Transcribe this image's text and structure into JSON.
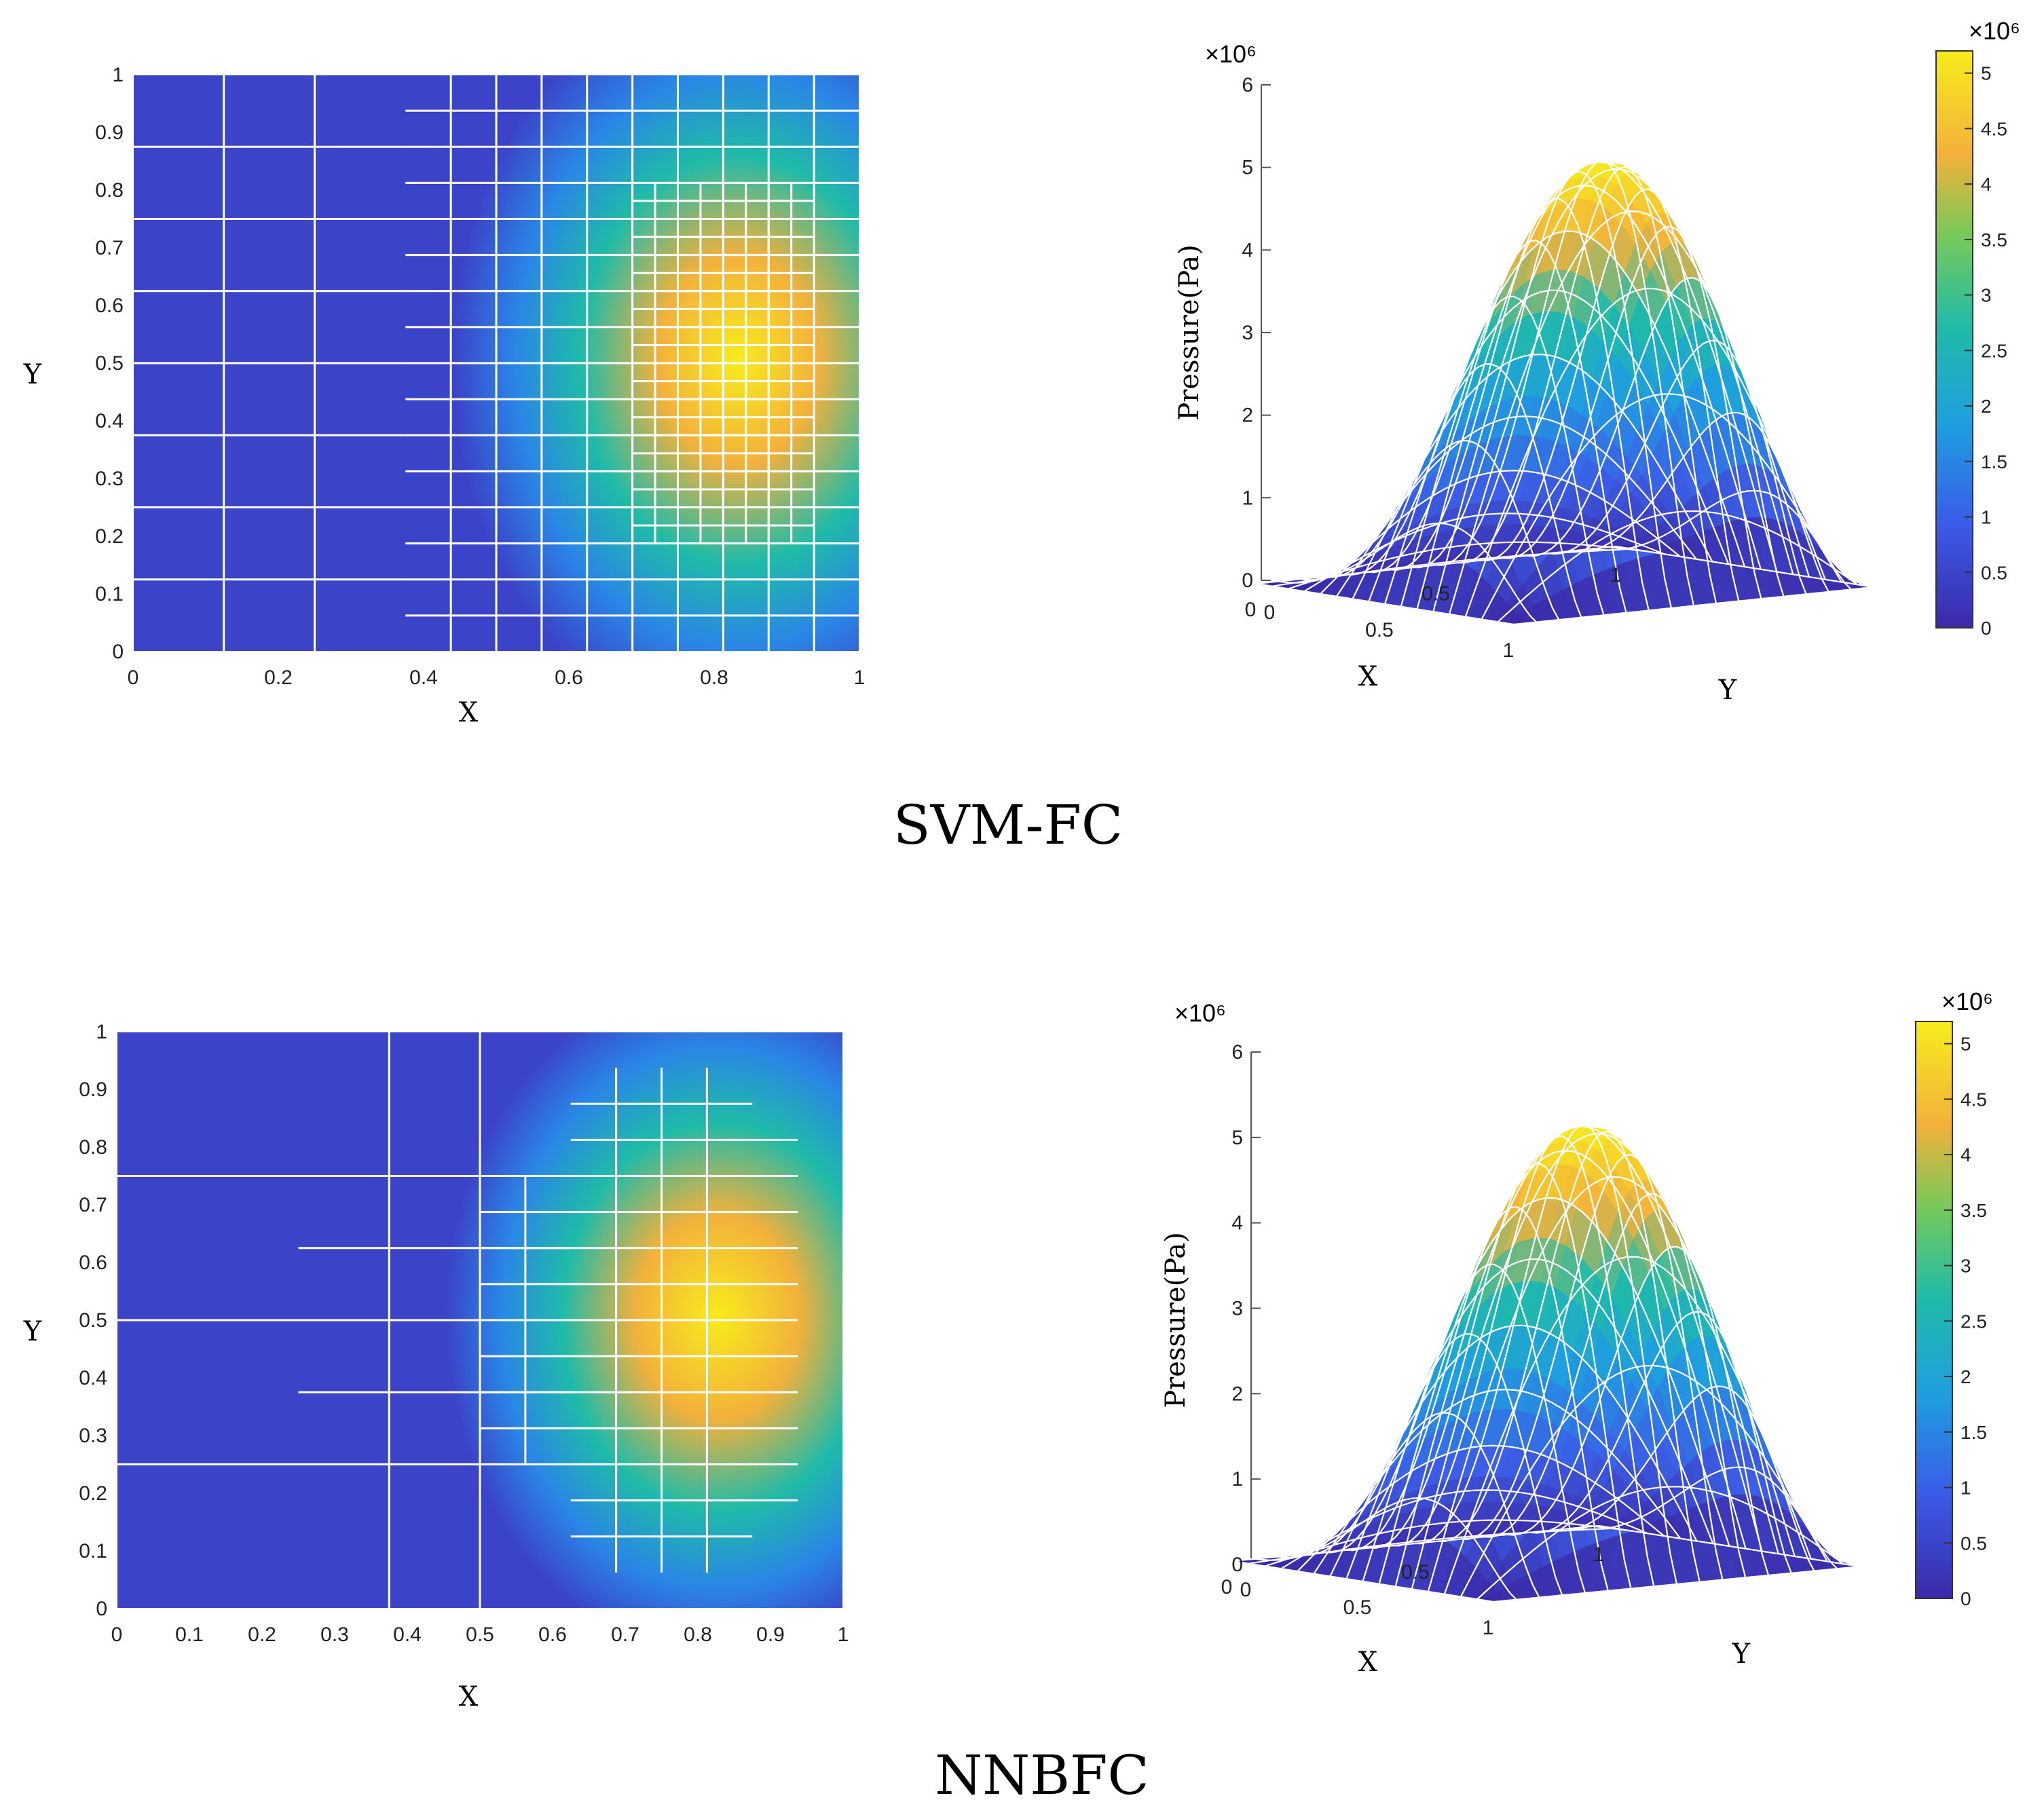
{
  "colors": {
    "blue": "#3b2aa8",
    "teal": "#1fbba8",
    "yellow": "#f7ec1c",
    "orange": "#f3b13b",
    "grid": "#ffffff"
  },
  "panels": [
    {
      "caption": "SVM-FC",
      "mesh": {
        "type": "heatmap",
        "xlabel": "X",
        "ylabel": "Y",
        "xlim": [
          0,
          1
        ],
        "ylim": [
          0,
          1
        ],
        "xticks": [
          "0",
          "0.2",
          "0.4",
          "0.6",
          "0.8",
          "1"
        ],
        "yticks": [
          "0",
          "0.1",
          "0.2",
          "0.3",
          "0.4",
          "0.5",
          "0.6",
          "0.7",
          "0.8",
          "0.9",
          "1"
        ],
        "peak": [
          0.8,
          0.5
        ],
        "field": "pressure, peak near x=0.8 y=0.5",
        "cell_levels": [
          {
            "x": [
              0,
              0.375
            ],
            "y": [
              0,
              1
            ],
            "h": 0.125
          },
          {
            "x": [
              0,
              0.375
            ],
            "y": [
              0,
              1
            ],
            "v": 0.125
          },
          {
            "x": [
              0.375,
              1
            ],
            "y": [
              0,
              1
            ],
            "h": 0.0625
          },
          {
            "x": [
              0.375,
              1
            ],
            "y": [
              0,
              1
            ],
            "v": 0.0625
          },
          {
            "x": [
              0.6875,
              0.9375
            ],
            "y": [
              0.1875,
              0.8125
            ],
            "h": 0.03125
          },
          {
            "x": [
              0.6875,
              0.9375
            ],
            "y": [
              0.1875,
              0.8125
            ],
            "v": 0.03125
          }
        ]
      },
      "surface": {
        "type": "surface",
        "multiplier": "×10⁶",
        "zlabel": "Pressure(Pa)",
        "xlabel": "X",
        "ylabel": "Y",
        "zlim": [
          0,
          6
        ],
        "peak_value": 5.2,
        "zticks": [
          "0",
          "1",
          "2",
          "3",
          "4",
          "5",
          "6"
        ],
        "xticks": [
          "1",
          "0.5",
          "0"
        ],
        "yticks": [
          "0",
          "0.5",
          "1"
        ],
        "colorbar": {
          "multiplier": "×10⁶",
          "ticks": [
            "0",
            "0.5",
            "1",
            "1.5",
            "2",
            "2.5",
            "3",
            "3.5",
            "4",
            "4.5",
            "5"
          ]
        }
      }
    },
    {
      "caption": "NNBFC",
      "mesh": {
        "type": "heatmap",
        "xlabel": "X",
        "ylabel": "Y",
        "xlim": [
          0,
          1
        ],
        "ylim": [
          0,
          1
        ],
        "xticks": [
          "0",
          "0.1",
          "0.2",
          "0.3",
          "0.4",
          "0.5",
          "0.6",
          "0.7",
          "0.8",
          "0.9",
          "1"
        ],
        "yticks": [
          "0",
          "0.1",
          "0.2",
          "0.3",
          "0.4",
          "0.5",
          "0.6",
          "0.7",
          "0.8",
          "0.9",
          "1"
        ],
        "peak": [
          0.82,
          0.5
        ],
        "field": "pressure, peak near x=0.82 y=0.5",
        "cell_levels": [
          {
            "x": [
              0,
              0.25
            ],
            "y": [
              0,
              1
            ],
            "h": 0.25
          },
          {
            "x": [
              0.25,
              0.625
            ],
            "y": [
              0,
              1
            ],
            "v": 0.125
          },
          {
            "x": [
              0.25,
              0.625
            ],
            "y": [
              0.125,
              0.875
            ],
            "h": 0.125
          },
          {
            "x": [
              0.5,
              0.625
            ],
            "y": [
              0.25,
              0.75
            ],
            "h": 0.0625
          },
          {
            "x": [
              0.5,
              0.625
            ],
            "y": [
              0.25,
              0.75
            ],
            "v": 0.0625
          },
          {
            "x": [
              0.625,
              0.875
            ],
            "y": [
              0.0625,
              0.9375
            ],
            "v": 0.0625
          },
          {
            "x": [
              0.625,
              0.875
            ],
            "y": [
              0.0625,
              0.9375
            ],
            "h": 0.0625
          },
          {
            "x": [
              0.875,
              0.9375
            ],
            "y": [
              0.125,
              0.875
            ],
            "h": 0.0625
          }
        ]
      },
      "surface": {
        "type": "surface",
        "multiplier": "×10⁶",
        "zlabel": "Pressure(Pa)",
        "xlabel": "X",
        "ylabel": "Y",
        "zlim": [
          0,
          6
        ],
        "peak_value": 5.2,
        "zticks": [
          "0",
          "1",
          "2",
          "3",
          "4",
          "5",
          "6"
        ],
        "xticks": [
          "1",
          "0.5",
          "0"
        ],
        "yticks": [
          "0",
          "0.5",
          "1"
        ],
        "colorbar": {
          "multiplier": "×10⁶",
          "ticks": [
            "0",
            "0.5",
            "1",
            "1.5",
            "2",
            "2.5",
            "3",
            "3.5",
            "4",
            "4.5",
            "5"
          ]
        }
      }
    }
  ],
  "chart_data": [
    {
      "type": "heatmap",
      "panel": "SVM-FC mesh",
      "xlabel": "X",
      "ylabel": "Y",
      "xlim": [
        0,
        1
      ],
      "ylim": [
        0,
        1
      ],
      "xticks": [
        0,
        0.2,
        0.4,
        0.6,
        0.8,
        1
      ],
      "yticks": [
        0,
        0.1,
        0.2,
        0.3,
        0.4,
        0.5,
        0.6,
        0.7,
        0.8,
        0.9,
        1
      ],
      "peak_location": {
        "x": 0.8,
        "y": 0.5
      }
    },
    {
      "type": "surface",
      "panel": "SVM-FC pressure",
      "zlabel": "Pressure(Pa)",
      "zlim": [
        0,
        6
      ],
      "z_multiplier": 1000000,
      "peak_value": 5.2,
      "colorbar_range": [
        0,
        5.2
      ]
    },
    {
      "type": "heatmap",
      "panel": "NNBFC mesh",
      "xlabel": "X",
      "ylabel": "Y",
      "xlim": [
        0,
        1
      ],
      "ylim": [
        0,
        1
      ],
      "xticks": [
        0,
        0.1,
        0.2,
        0.3,
        0.4,
        0.5,
        0.6,
        0.7,
        0.8,
        0.9,
        1
      ],
      "yticks": [
        0,
        0.1,
        0.2,
        0.3,
        0.4,
        0.5,
        0.6,
        0.7,
        0.8,
        0.9,
        1
      ],
      "peak_location": {
        "x": 0.82,
        "y": 0.5
      }
    },
    {
      "type": "surface",
      "panel": "NNBFC pressure",
      "zlabel": "Pressure(Pa)",
      "zlim": [
        0,
        6
      ],
      "z_multiplier": 1000000,
      "peak_value": 5.2,
      "colorbar_range": [
        0,
        5.2
      ]
    }
  ]
}
